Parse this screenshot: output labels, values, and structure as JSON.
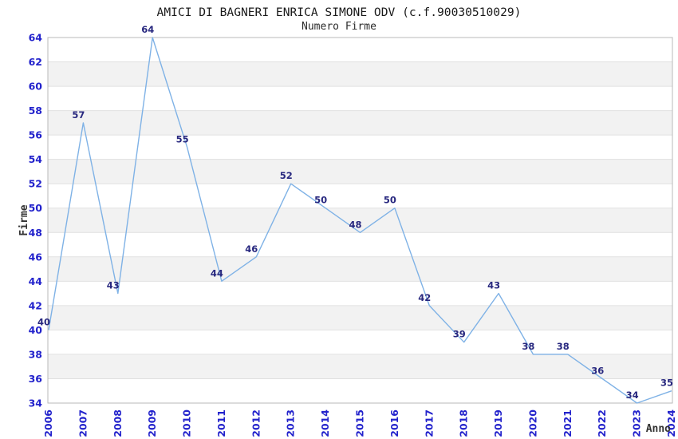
{
  "chart_data": {
    "type": "line",
    "title": "AMICI DI BAGNERI ENRICA SIMONE ODV (c.f.90030510029)",
    "subtitle": "Numero Firme",
    "xlabel": "Anno",
    "ylabel": "Firme",
    "x": [
      "2006",
      "2007",
      "2008",
      "2009",
      "2010",
      "2011",
      "2012",
      "2013",
      "2014",
      "2015",
      "2016",
      "2017",
      "2018",
      "2019",
      "2020",
      "2021",
      "2022",
      "2023",
      "2024"
    ],
    "values": [
      40,
      57,
      43,
      64,
      55,
      44,
      46,
      52,
      50,
      48,
      50,
      42,
      39,
      43,
      38,
      38,
      36,
      34,
      35
    ],
    "yticks": [
      34,
      36,
      38,
      40,
      42,
      44,
      46,
      48,
      50,
      52,
      54,
      56,
      58,
      60,
      62,
      64
    ],
    "ylim": [
      34,
      64
    ],
    "ytick_step": 2,
    "grid": "horizontal gridlines with alternating shaded bands",
    "legend": "none",
    "data_labels_shown": true
  },
  "colors": {
    "line": "#7fb2e6",
    "tick_label": "#2323cc",
    "data_label": "#28287f",
    "band_fill": "#f2f2f2",
    "gridline": "#e0e0e0",
    "plot_border": "#b9b9b9",
    "axis_title": "#333333",
    "background": "#ffffff"
  }
}
